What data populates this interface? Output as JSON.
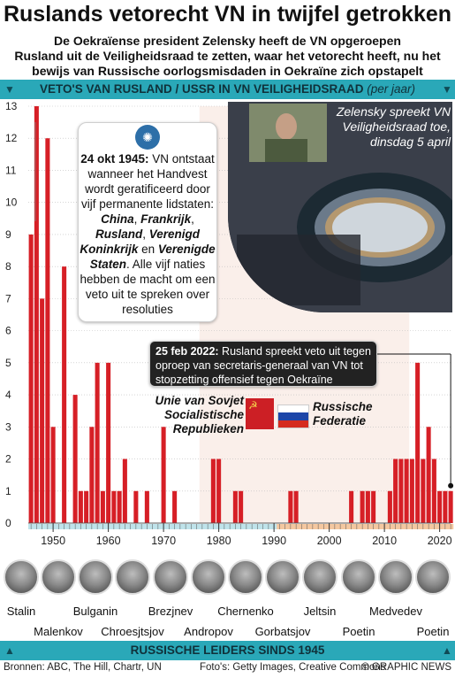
{
  "title": "Ruslands vetorecht VN in twijfel getrokken",
  "subtitle": [
    "De Oekraïense president Zelensky heeft de VN opgeroepen",
    "Rusland uit de Veiligheidsraad te zetten, waar het vetorecht heeft, nu het",
    "bewijs van Russische oorlogsmisdaden in Oekraïne zich opstapelt"
  ],
  "band_top": {
    "label": "VETO'S VAN RUSLAND / USSR IN VN VEILIGHEIDSRAAD",
    "note": "(per jaar)"
  },
  "band_bottom": {
    "label": "RUSSISCHE LEIDERS SINDS 1945"
  },
  "callout_un": {
    "icon": "un-emblem-icon",
    "html_parts": [
      "24 okt 1945:",
      " VN ontstaat wanneer het Handvest wordt geratificeerd door vijf permanente lidstaten: ",
      "China",
      ", ",
      "Frankrijk",
      ", ",
      "Rusland",
      ", ",
      "Verenigd Koninkrijk",
      " en ",
      "Verenigde Staten",
      ". Alle vijf naties hebben de macht om een veto uit te spreken over resoluties"
    ]
  },
  "callout_2022": {
    "date": "25 feb 2022:",
    "text": " Rusland spreekt veto uit tegen oproep van secretaris-generaal van VN tot stopzetting offensief tegen Oekraïne"
  },
  "photo_caption": "Zelensky spreekt VN Veiligheidsraad toe, dinsdag 5 april",
  "label_ussr": "Unie van Sovjet Socialistische Republieken",
  "label_rf": "Russische Federatie",
  "colors": {
    "bar": "#d61f26",
    "band": "#2aa8b8",
    "ussr_period": "#e8823a",
    "rf_period": "#e8823a",
    "grid": "#bdbdbd"
  },
  "leaders": [
    "Stalin",
    "Malenkov",
    "Bulganin",
    "Chroesjtsjov",
    "Brezjnev",
    "Andropov",
    "Chernenko",
    "Gorbatsjov",
    "Jeltsin",
    "Poetin",
    "Medvedev",
    "Poetin"
  ],
  "sources": {
    "left": "Bronnen: ABC, The Hill, Chartr, UN",
    "middle": "Foto's: Getty Images, Creative Commons",
    "right": "© GRAPHIC NEWS"
  },
  "chart_data": {
    "type": "bar",
    "title": "VETO'S VAN RUSLAND / USSR IN VN VEILIGHEIDSRAAD",
    "ylabel": "",
    "ylim": [
      0,
      13
    ],
    "yticks": [
      0,
      1,
      2,
      3,
      4,
      5,
      6,
      7,
      8,
      9,
      10,
      11,
      12,
      13
    ],
    "xticks": [
      1950,
      1960,
      1970,
      1980,
      1990,
      2000,
      2010,
      2020
    ],
    "x": [
      1946,
      1947,
      1948,
      1949,
      1950,
      1951,
      1952,
      1953,
      1954,
      1955,
      1956,
      1957,
      1958,
      1959,
      1960,
      1961,
      1962,
      1963,
      1964,
      1965,
      1966,
      1967,
      1968,
      1969,
      1970,
      1971,
      1972,
      1973,
      1974,
      1975,
      1976,
      1977,
      1978,
      1979,
      1980,
      1981,
      1982,
      1983,
      1984,
      1985,
      1986,
      1987,
      1988,
      1989,
      1990,
      1991,
      1992,
      1993,
      1994,
      1995,
      1996,
      1997,
      1998,
      1999,
      2000,
      2001,
      2002,
      2003,
      2004,
      2005,
      2006,
      2007,
      2008,
      2009,
      2010,
      2011,
      2012,
      2013,
      2014,
      2015,
      2016,
      2017,
      2018,
      2019,
      2020,
      2021,
      2022
    ],
    "values": [
      9,
      13,
      7,
      12,
      3,
      0,
      8,
      0,
      4,
      1,
      1,
      3,
      5,
      1,
      5,
      1,
      1,
      2,
      0,
      1,
      0,
      1,
      0,
      0,
      3,
      0,
      1,
      0,
      0,
      0,
      0,
      0,
      0,
      2,
      2,
      0,
      0,
      1,
      1,
      0,
      0,
      0,
      0,
      0,
      0,
      0,
      0,
      1,
      1,
      0,
      0,
      0,
      0,
      0,
      0,
      0,
      0,
      0,
      1,
      0,
      1,
      1,
      1,
      0,
      0,
      1,
      2,
      2,
      2,
      2,
      5,
      2,
      3,
      2,
      1,
      1,
      1
    ]
  }
}
